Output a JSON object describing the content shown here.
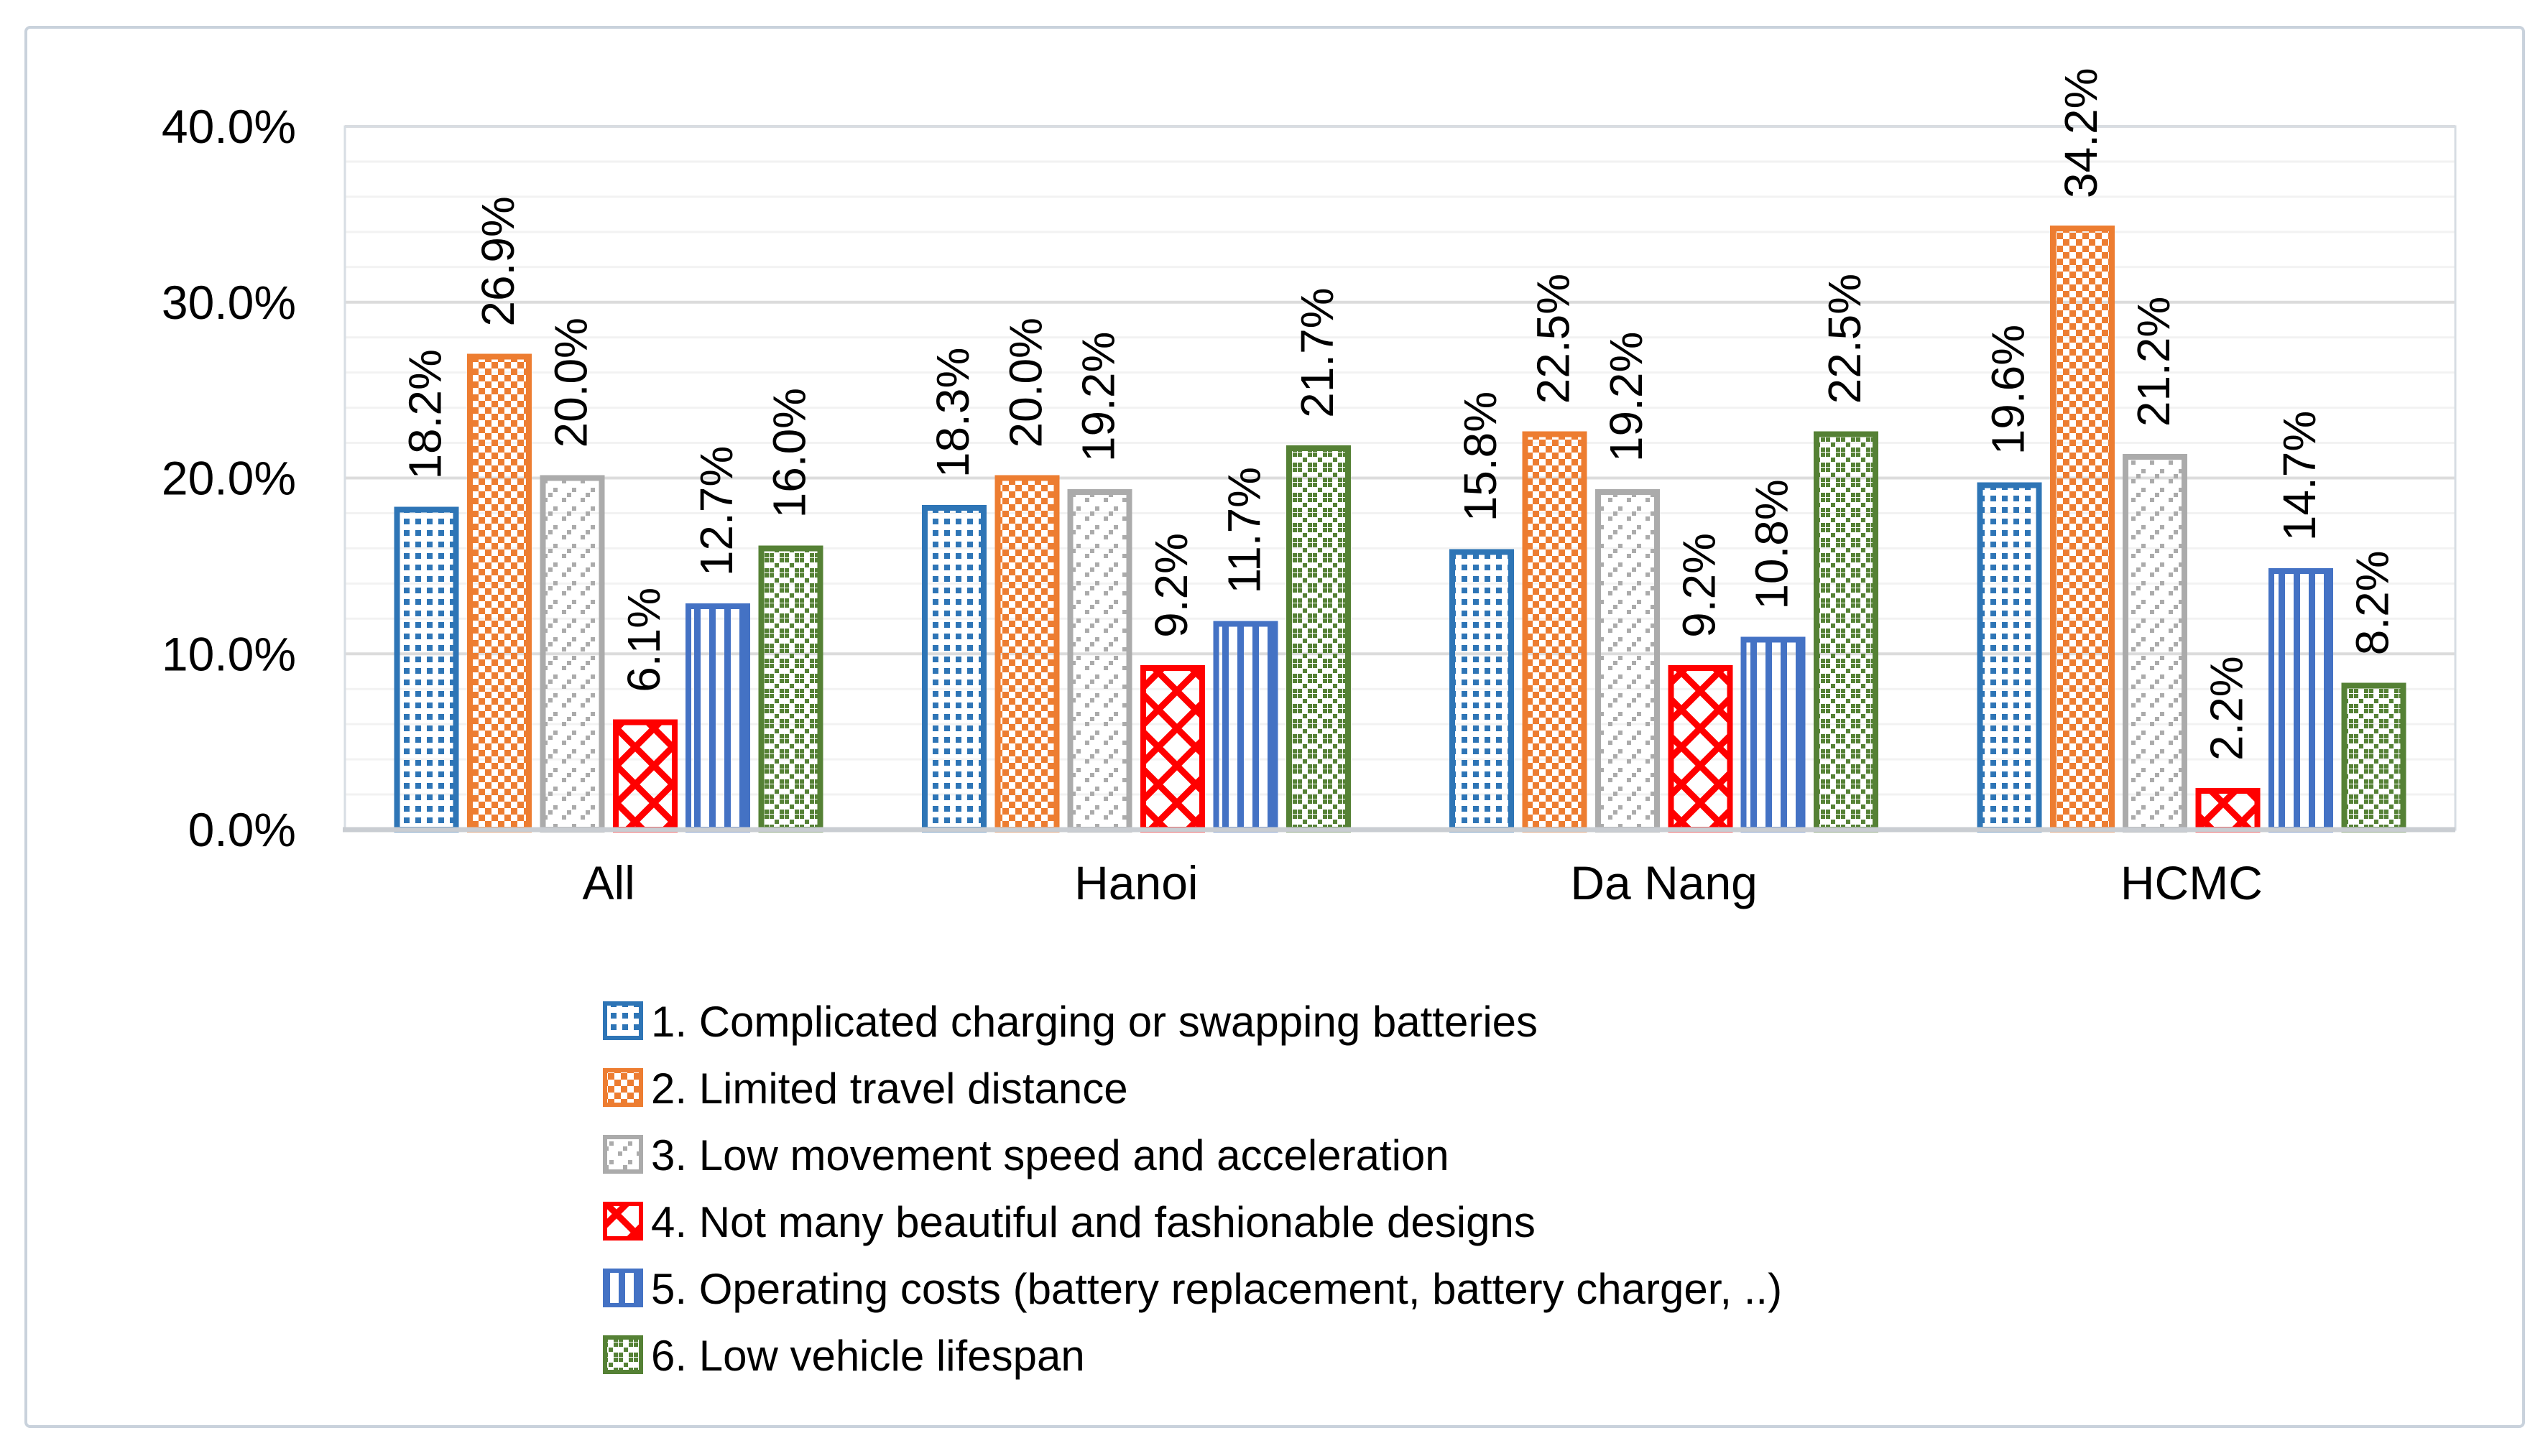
{
  "figure": {
    "background": "#ffffff",
    "frame_border_color": "#c9d2dc",
    "plot_border_color": "#d7dde3",
    "major_gridline_color": "#dcdcdc",
    "minor_gridline_color": "#f2f2f2",
    "axis_line_color": "#c9cdd2",
    "text_color": "#000000"
  },
  "chart_data": {
    "type": "bar",
    "title": "",
    "xlabel": "",
    "ylabel": "",
    "categories": [
      "All",
      "Hanoi",
      "Da Nang",
      "HCMC"
    ],
    "series": [
      {
        "name": "1. Complicated charging or swapping batteries",
        "color": "#2E75B6",
        "pattern": "dotted-grid",
        "values": [
          18.2,
          18.3,
          15.8,
          19.6
        ]
      },
      {
        "name": "2. Limited travel distance",
        "color": "#ED7D31",
        "pattern": "dashed-down-diagonal",
        "values": [
          26.9,
          20.0,
          22.5,
          34.2
        ]
      },
      {
        "name": "3. Low movement speed and acceleration",
        "color": "#ABABAB",
        "pattern": "sparse-up-diagonal-dashes",
        "values": [
          20.0,
          19.2,
          19.2,
          21.2
        ]
      },
      {
        "name": "4. Not many beautiful and fashionable designs",
        "color": "#FF0000",
        "pattern": "diagonal-crosshatch",
        "values": [
          6.1,
          9.2,
          9.2,
          2.2
        ]
      },
      {
        "name": "5. Operating costs (battery replacement, battery charger, ..)",
        "color": "#4472C4",
        "pattern": "vertical-stripes",
        "values": [
          12.7,
          11.7,
          10.8,
          14.7
        ]
      },
      {
        "name": "6. Low vehicle lifespan",
        "color": "#558135",
        "pattern": "diagonal-weave",
        "values": [
          16.0,
          21.7,
          22.5,
          8.2
        ]
      }
    ],
    "data_label_format": "0.0%",
    "ylim": [
      0,
      40
    ],
    "ytick_step": 10,
    "yminor_step": 2,
    "yticklabels": [
      "0.0%",
      "10.0%",
      "20.0%",
      "30.0%",
      "40.0%"
    ],
    "grid": "on",
    "legend_position": "bottom-left-column"
  },
  "legend": {
    "items": [
      "1. Complicated charging or swapping batteries",
      "2. Limited travel distance",
      "3. Low movement speed and acceleration",
      "4. Not many beautiful and fashionable designs",
      "5. Operating costs (battery replacement, battery charger, ..)",
      "6. Low vehicle lifespan"
    ]
  }
}
